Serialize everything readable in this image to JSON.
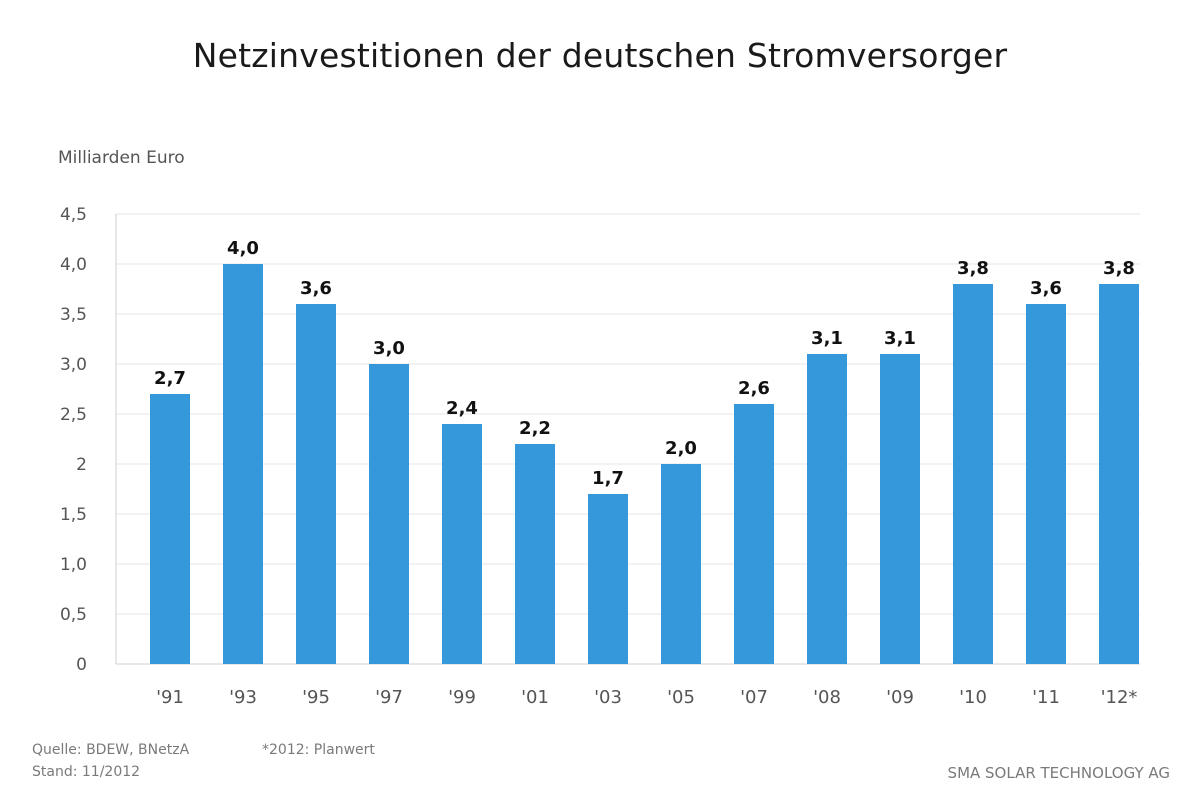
{
  "chart_data": {
    "type": "bar",
    "title": "Netzinvestitionen der deutschen Stromversorger",
    "ylabel": "Milliarden Euro",
    "xlabel": "",
    "categories": [
      "'91",
      "'93",
      "'95",
      "'97",
      "'99",
      "'01",
      "'03",
      "'05",
      "'07",
      "'08",
      "'09",
      "'10",
      "'11",
      "'12*"
    ],
    "values": [
      2.7,
      4.0,
      3.6,
      3.0,
      2.4,
      2.2,
      1.7,
      2.0,
      2.6,
      3.1,
      3.1,
      3.8,
      3.6,
      3.8
    ],
    "data_labels": [
      "2,7",
      "4,0",
      "3,6",
      "3,0",
      "2,4",
      "2,2",
      "1,7",
      "2,0",
      "2,6",
      "3,1",
      "3,1",
      "3,8",
      "3,6",
      "3,8"
    ],
    "ylim": [
      0,
      4.5
    ],
    "y_ticks": [
      0,
      0.5,
      1.0,
      1.5,
      2.0,
      2.5,
      3.0,
      3.5,
      4.0,
      4.5
    ],
    "y_tick_labels": [
      "0",
      "0,5",
      "1,0",
      "1,5",
      "2",
      "2,5",
      "3,0",
      "3,5",
      "4,0",
      "4,5"
    ],
    "grid": true,
    "legend": "none",
    "bar_color": "#3598DB",
    "grid_color": "#e6e6e6"
  },
  "footer": {
    "source": "Quelle: BDEW, BNetzA",
    "stand": "Stand: 11/2012",
    "note": "*2012: Planwert",
    "company": "SMA SOLAR TECHNOLOGY AG"
  }
}
